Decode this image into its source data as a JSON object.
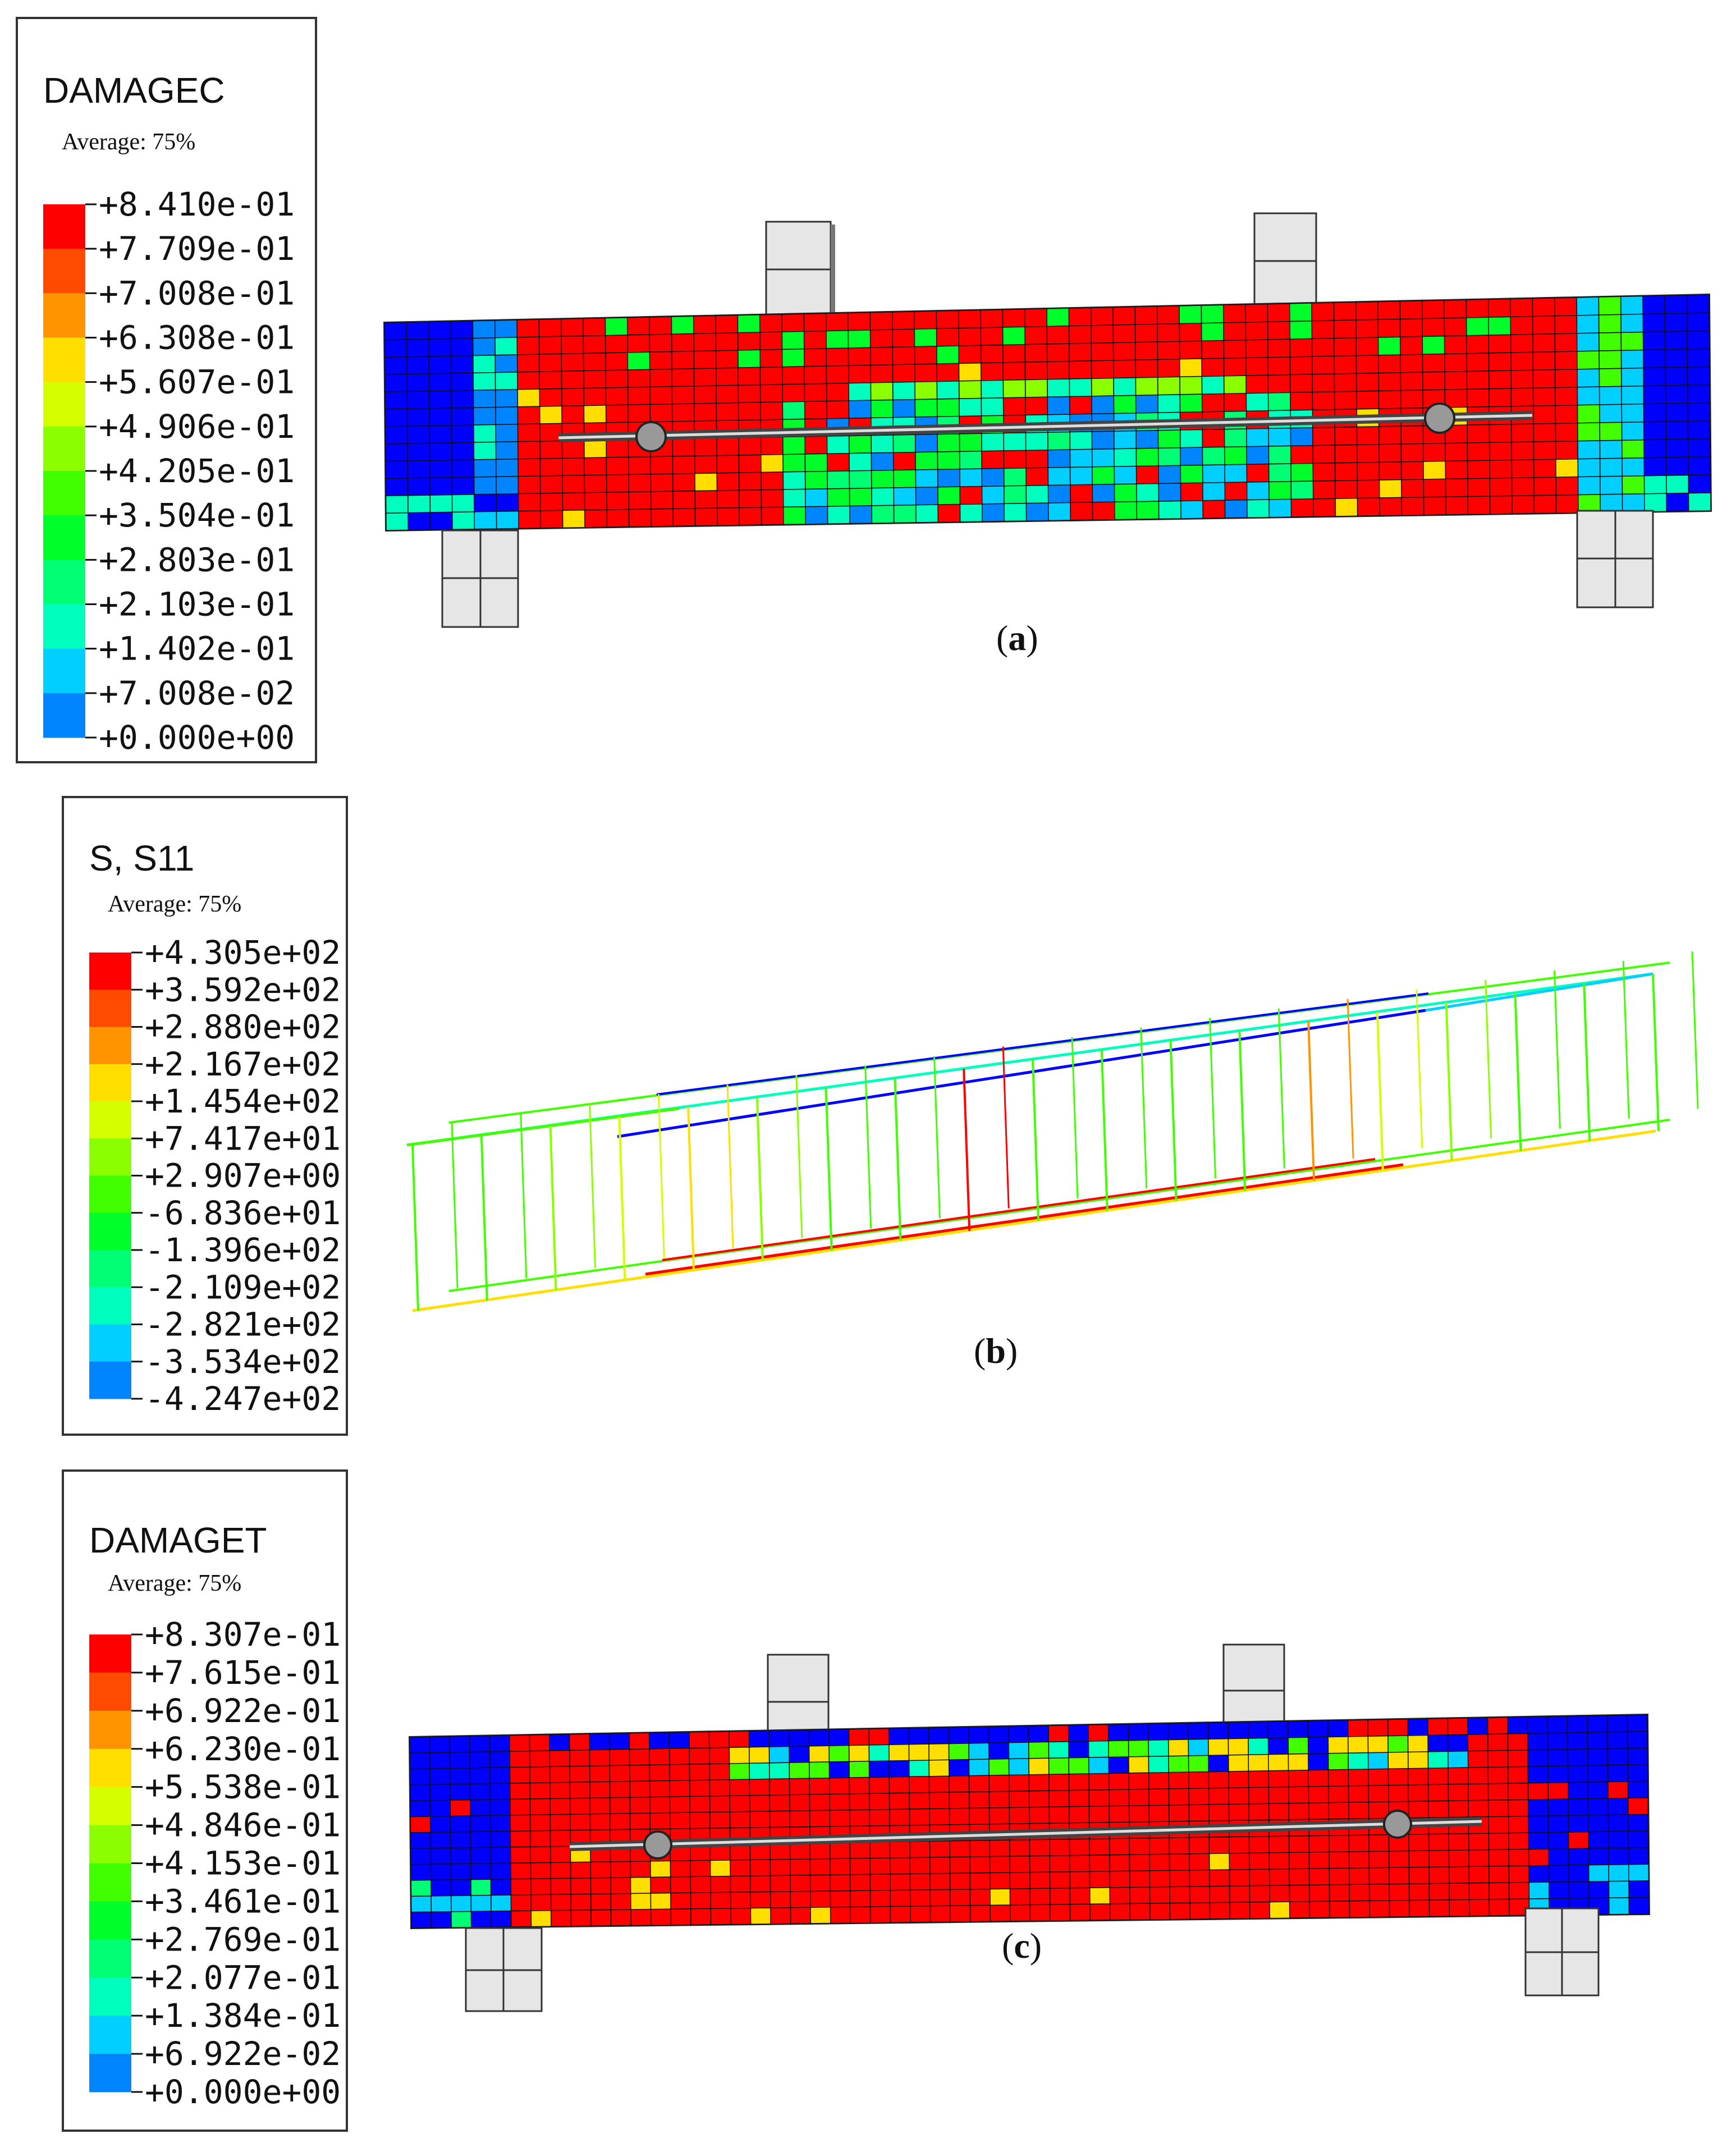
{
  "panels": [
    {
      "id": "a",
      "legend": {
        "variable": "DAMAGEC",
        "averaging": "Average: 75%",
        "levels": [
          "+8.410e-01",
          "+7.709e-01",
          "+7.008e-01",
          "+6.308e-01",
          "+5.607e-01",
          "+4.906e-01",
          "+4.205e-01",
          "+3.504e-01",
          "+2.803e-01",
          "+2.103e-01",
          "+1.402e-01",
          "+7.008e-02",
          "+0.000e+00"
        ]
      },
      "caption": "(a)",
      "caption_letter": "a"
    },
    {
      "id": "b",
      "legend": {
        "variable": "S, S11",
        "averaging": "Average: 75%",
        "levels": [
          "+4.305e+02",
          "+3.592e+02",
          "+2.880e+02",
          "+2.167e+02",
          "+1.454e+02",
          "+7.417e+01",
          "+2.907e+00",
          "-6.836e+01",
          "-1.396e+02",
          "-2.109e+02",
          "-2.821e+02",
          "-3.534e+02",
          "-4.247e+02"
        ]
      },
      "caption": "(b)",
      "caption_letter": "b"
    },
    {
      "id": "c",
      "legend": {
        "variable": "DAMAGET",
        "averaging": "Average: 75%",
        "levels": [
          "+8.307e-01",
          "+7.615e-01",
          "+6.922e-01",
          "+6.230e-01",
          "+5.538e-01",
          "+4.846e-01",
          "+4.153e-01",
          "+3.461e-01",
          "+2.769e-01",
          "+2.077e-01",
          "+1.384e-01",
          "+6.922e-02",
          "+0.000e+00"
        ]
      },
      "caption": "(c)",
      "caption_letter": "c"
    }
  ],
  "colormap": [
    "#ff0000",
    "#ff4a00",
    "#ff9400",
    "#ffde00",
    "#d5ff00",
    "#8bff00",
    "#41ff00",
    "#00ff2a",
    "#00ff74",
    "#00ffbe",
    "#00cfff",
    "#0085ff",
    "#0000ff"
  ]
}
